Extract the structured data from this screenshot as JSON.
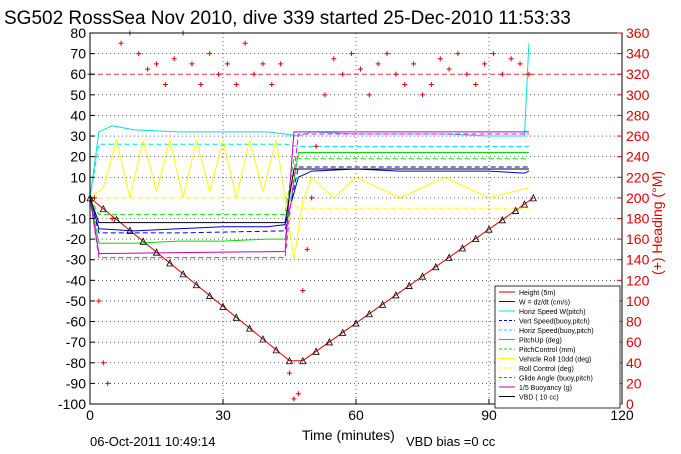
{
  "chart_data": {
    "type": "line",
    "title": "SG502 RossSea Nov 2010, dive 339 started 25-Dec-2010 11:53:33",
    "xlabel": "Time (minutes)",
    "ylabel": "",
    "ylabel_right": "(+) Heading (°M)",
    "xlim": [
      0,
      120
    ],
    "ylim": [
      -100,
      80
    ],
    "ylim_right": [
      0,
      360
    ],
    "x_ticks": [
      "0",
      "30",
      "60",
      "90",
      "120"
    ],
    "y_ticks": [
      "80",
      "70",
      "60",
      "50",
      "40",
      "30",
      "20",
      "10",
      "0",
      "-10",
      "-20",
      "-30",
      "-40",
      "-50",
      "-60",
      "-70",
      "-80",
      "-90",
      "-100"
    ],
    "y_ticks_right": [
      "360",
      "340",
      "320",
      "300",
      "280",
      "260",
      "240",
      "220",
      "200",
      "180",
      "160",
      "140",
      "120",
      "100",
      "80",
      "60",
      "40",
      "20",
      "0"
    ],
    "grid": true,
    "legend_position": "bottom-right",
    "footer_left": "06-Oct-2011 10:49:14",
    "footer_right": "VBD bias =0 cc",
    "series": [
      {
        "name": "Height (5m)",
        "color": "#e00000",
        "style": "solid",
        "x": [
          0,
          45,
          48,
          100
        ],
        "y": [
          0,
          -79,
          -79,
          0
        ]
      },
      {
        "name": "W = dz/dt (cm/s)",
        "color": "#0000e0",
        "style": "solid",
        "x": [
          0,
          2,
          10,
          20,
          30,
          40,
          44,
          47,
          50,
          60,
          70,
          80,
          90,
          98,
          99
        ],
        "y": [
          0,
          -15,
          -16,
          -15,
          -14,
          -14,
          -13,
          10,
          13,
          14,
          13,
          13,
          13,
          12,
          13
        ]
      },
      {
        "name": "Horiz Speed W(pitch)",
        "color": "#00e0e0",
        "style": "solid",
        "x": [
          0,
          2,
          5,
          10,
          20,
          30,
          40,
          44,
          47,
          50,
          60,
          70,
          80,
          90,
          98,
          99
        ],
        "y": [
          0,
          32,
          35,
          33,
          32,
          32,
          32,
          31,
          30,
          32,
          31,
          31,
          31,
          30,
          30,
          75
        ]
      },
      {
        "name": "Vert Speed(buoy,pitch)",
        "color": "#0000e0",
        "style": "dashed",
        "x": [
          0,
          2,
          20,
          44,
          47,
          60,
          80,
          99
        ],
        "y": [
          0,
          -17,
          -17,
          -16,
          15,
          15,
          15,
          15
        ]
      },
      {
        "name": "Horiz Speed(buoy,pitch)",
        "color": "#00e0e0",
        "style": "dashed",
        "x": [
          0,
          2,
          20,
          44,
          47,
          60,
          80,
          99
        ],
        "y": [
          0,
          26,
          26,
          26,
          25,
          25,
          25,
          25
        ]
      },
      {
        "name": "PitchUp (deg)",
        "color": "#00e000",
        "style": "solid",
        "x": [
          0,
          2,
          10,
          20,
          30,
          40,
          44,
          47,
          60,
          80,
          99
        ],
        "y": [
          0,
          -22,
          -22,
          -21,
          -21,
          -20,
          -20,
          22,
          22,
          22,
          22
        ]
      },
      {
        "name": "PitchControl (mm)",
        "color": "#00e000",
        "style": "dashed",
        "x": [
          0,
          2,
          44,
          46,
          99
        ],
        "y": [
          0,
          -8,
          -8,
          19,
          19
        ]
      },
      {
        "name": "Vehicle Roll 10dd (deg)",
        "color": "#ffff00",
        "style": "solid",
        "x": [
          0,
          3,
          6,
          9,
          12,
          15,
          18,
          21,
          24,
          27,
          30,
          33,
          36,
          39,
          42,
          44,
          46,
          48,
          50,
          55,
          60,
          70,
          80,
          90,
          99
        ],
        "y": [
          0,
          5,
          28,
          0,
          28,
          3,
          28,
          0,
          28,
          3,
          28,
          0,
          28,
          3,
          28,
          0,
          -30,
          -2,
          10,
          0,
          10,
          0,
          10,
          0,
          5
        ]
      },
      {
        "name": "Roll Control (deg)",
        "color": "#ffff00",
        "style": "dashed",
        "x": [
          0,
          44,
          47,
          99
        ],
        "y": [
          0,
          0,
          -5,
          -5
        ]
      },
      {
        "name": "Glide Angle (buoy,pitch)",
        "color": "#ff00ff",
        "style": "dashed",
        "x": [
          0,
          2,
          44,
          47,
          99
        ],
        "y": [
          0,
          -29,
          -29,
          31,
          31
        ]
      },
      {
        "name": "1/5 Buoyancy (g)",
        "color": "#c000c0",
        "style": "solid",
        "x": [
          0,
          2,
          44,
          46,
          99
        ],
        "y": [
          0,
          -27,
          -26,
          32,
          32
        ]
      },
      {
        "name": "VBD ( 10 cc)",
        "color": "#000000",
        "style": "solid",
        "x": [
          0,
          2,
          44,
          46,
          99
        ],
        "y": [
          0,
          -12,
          -12,
          14,
          14
        ]
      }
    ],
    "height_markers_x": [
      0,
      3,
      6,
      9,
      12,
      15,
      18,
      21,
      24,
      27,
      30,
      33,
      36,
      39,
      42,
      45,
      48,
      51,
      54,
      57,
      60,
      63,
      66,
      69,
      72,
      75,
      78,
      81,
      84,
      87,
      90,
      93,
      96,
      98,
      100
    ],
    "heading_series": {
      "name": "Heading (°M)",
      "color": "#e00000",
      "axis": "right",
      "marker": "+",
      "x": [
        0,
        1,
        2,
        3,
        4,
        5,
        7,
        9,
        11,
        13,
        15,
        17,
        19,
        21,
        23,
        25,
        27,
        29,
        31,
        33,
        35,
        37,
        39,
        41,
        43,
        45,
        46,
        47,
        48,
        49,
        50,
        51,
        53,
        55,
        57,
        59,
        61,
        63,
        65,
        67,
        69,
        71,
        73,
        75,
        77,
        79,
        81,
        83,
        85,
        87,
        89,
        91,
        93,
        95,
        97,
        99
      ],
      "y": [
        320,
        200,
        100,
        40,
        20,
        180,
        350,
        360,
        340,
        325,
        330,
        310,
        335,
        360,
        330,
        310,
        340,
        320,
        330,
        310,
        350,
        320,
        330,
        310,
        330,
        30,
        5,
        10,
        110,
        150,
        200,
        250,
        300,
        335,
        320,
        340,
        325,
        300,
        330,
        340,
        320,
        310,
        330,
        300,
        310,
        335,
        325,
        340,
        320,
        310,
        330,
        340,
        320,
        335,
        330,
        320
      ]
    }
  }
}
